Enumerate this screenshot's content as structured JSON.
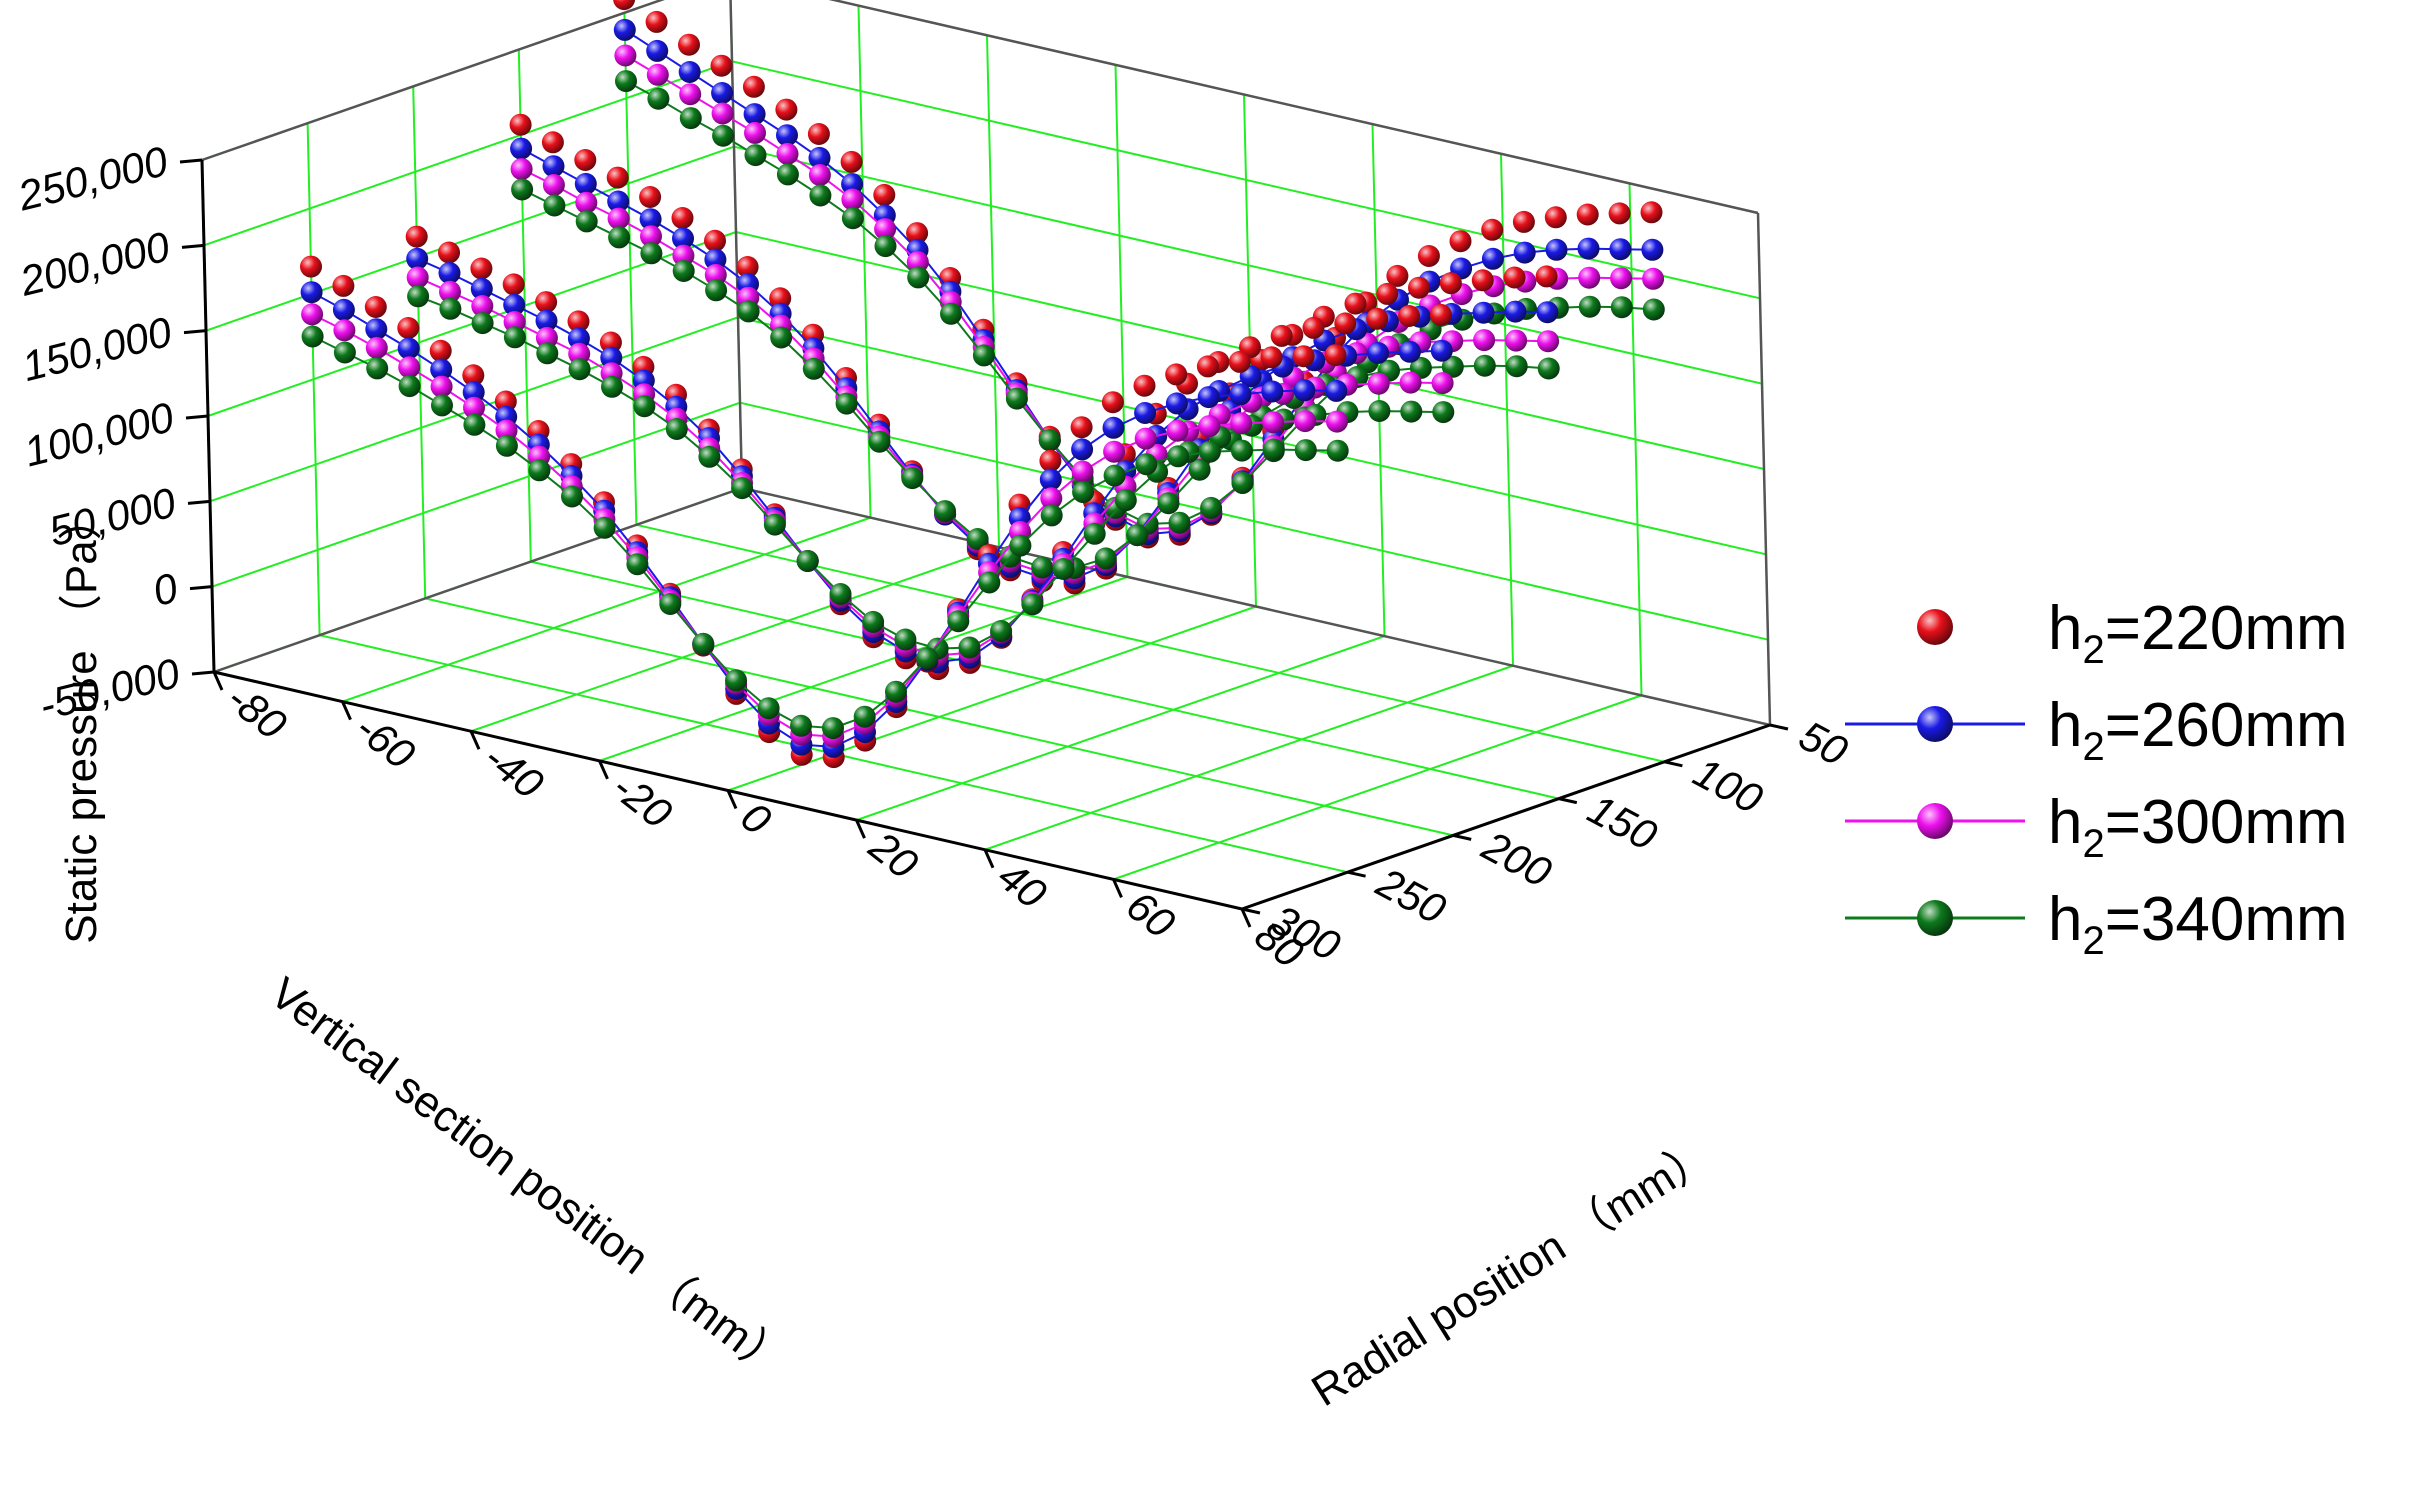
{
  "chart_data": {
    "type": "scatter3d",
    "z_axis": {
      "label": "Static pressure （Pa）",
      "range": [
        -50000,
        250000
      ],
      "ticks": [
        "-50,000",
        "0",
        "50,000",
        "100,000",
        "150,000",
        "200,000",
        "250,000"
      ]
    },
    "y_axis": {
      "label": "Vertical section position （mm）",
      "range": [
        50,
        300
      ],
      "ticks": [
        "50",
        "100",
        "150",
        "200",
        "250",
        "300"
      ]
    },
    "x_axis": {
      "label": "Radial position （mm）",
      "range": [
        -80,
        80
      ],
      "ticks": [
        "-80",
        "-60",
        "-40",
        "-20",
        "0",
        "20",
        "40",
        "60",
        "80"
      ]
    },
    "grid": true,
    "legend": "right",
    "sections_mm": [
      100,
      150,
      200,
      250
    ],
    "radial_mm": [
      -80,
      -75,
      -70,
      -65,
      -60,
      -55,
      -50,
      -45,
      -40,
      -35,
      -30,
      -25,
      -20,
      -15,
      -10,
      -5,
      0,
      5,
      10,
      15,
      20,
      25,
      30,
      35,
      40,
      45,
      50,
      55,
      60,
      65,
      70,
      75,
      80
    ],
    "series": [
      {
        "name": "h2=220mm",
        "label_main": "h",
        "label_sub": "2",
        "label_rest": "=220mm",
        "color": "#e8101a",
        "line": false,
        "profiles": [
          [
            258000,
            249000,
            240000,
            232000,
            224000,
            215000,
            205000,
            193000,
            178000,
            160000,
            138000,
            112000,
            85000,
            58000,
            34000,
            18000,
            12000,
            18000,
            34000,
            60000,
            92000,
            125000,
            155000,
            180000,
            200000,
            216000,
            229000,
            240000,
            249000,
            256000,
            262000,
            267000,
            272000
          ],
          [
            206000,
            200000,
            194000,
            188000,
            181000,
            173000,
            164000,
            153000,
            139000,
            122000,
            101000,
            78000,
            55000,
            34000,
            18000,
            10000,
            8000,
            11000,
            24000,
            48000,
            80000,
            114000,
            144000,
            168000,
            187000,
            202000,
            214000,
            224000,
            232000,
            239000,
            245000,
            251000,
            256000
          ],
          [
            162000,
            157000,
            152000,
            147000,
            141000,
            134000,
            126000,
            116000,
            104000,
            88000,
            69000,
            47000,
            24000,
            3000,
            -12000,
            -20000,
            -22000,
            -14000,
            5000,
            32000,
            64000,
            98000,
            130000,
            158000,
            180000,
            197000,
            210000,
            221000,
            230000,
            237000,
            244000,
            250000,
            255000
          ],
          [
            166000,
            159000,
            151000,
            143000,
            134000,
            124000,
            113000,
            100000,
            85000,
            67000,
            46000,
            22000,
            -4000,
            -28000,
            -46000,
            -55000,
            -52000,
            -38000,
            -14000,
            17000,
            52000,
            88000,
            122000,
            152000,
            176000,
            195000,
            209000,
            220000,
            229000,
            236000,
            243000,
            248000,
            253000
          ]
        ]
      },
      {
        "name": "h2=260mm",
        "label_main": "h",
        "label_sub": "2",
        "label_rest": "=260mm",
        "color": "#1a1ae6",
        "line": true,
        "profiles": [
          [
            240000,
            232000,
            224000,
            216000,
            208000,
            200000,
            191000,
            180000,
            166000,
            150000,
            130000,
            106000,
            81000,
            56000,
            34000,
            20000,
            14000,
            20000,
            35000,
            58000,
            87000,
            117000,
            145000,
            168000,
            186000,
            201000,
            213000,
            223000,
            231000,
            237000,
            242000,
            246000,
            250000
          ],
          [
            192000,
            186000,
            180000,
            174000,
            168000,
            161000,
            153000,
            143000,
            130000,
            114000,
            95000,
            74000,
            53000,
            34000,
            20000,
            12000,
            10000,
            14000,
            26000,
            48000,
            77000,
            107000,
            134000,
            156000,
            174000,
            188000,
            199000,
            208000,
            215000,
            221000,
            226000,
            231000,
            235000
          ],
          [
            149000,
            145000,
            140000,
            135000,
            130000,
            124000,
            117000,
            108000,
            97000,
            83000,
            65000,
            45000,
            24000,
            5000,
            -9000,
            -16000,
            -18000,
            -11000,
            6000,
            31000,
            60000,
            91000,
            120000,
            145000,
            165000,
            180000,
            193000,
            203000,
            211000,
            218000,
            224000,
            229000,
            234000
          ],
          [
            151000,
            145000,
            138000,
            131000,
            123000,
            114000,
            104000,
            92000,
            78000,
            62000,
            42000,
            20000,
            -3000,
            -25000,
            -41000,
            -49000,
            -46000,
            -33000,
            -11000,
            18000,
            50000,
            83000,
            114000,
            141000,
            163000,
            180000,
            193000,
            203000,
            211000,
            217000,
            223000,
            228000,
            232000
          ]
        ]
      },
      {
        "name": "h2=300mm",
        "label_main": "h",
        "label_sub": "2",
        "label_rest": "=300mm",
        "color": "#ee10ee",
        "line": true,
        "profiles": [
          [
            225000,
            218000,
            211000,
            204000,
            197000,
            189000,
            181000,
            171000,
            158000,
            143000,
            124000,
            102000,
            79000,
            56000,
            36000,
            22000,
            17000,
            22000,
            36000,
            57000,
            83000,
            110000,
            135000,
            156000,
            173000,
            187000,
            198000,
            207000,
            214000,
            220000,
            225000,
            229000,
            233000
          ],
          [
            180000,
            175000,
            169000,
            164000,
            158000,
            151000,
            144000,
            135000,
            123000,
            108000,
            90000,
            71000,
            52000,
            35000,
            22000,
            15000,
            13000,
            17000,
            28000,
            48000,
            74000,
            101000,
            126000,
            146000,
            162000,
            175000,
            185000,
            193000,
            200000,
            205000,
            210000,
            214000,
            218000
          ],
          [
            138000,
            134000,
            130000,
            125000,
            120000,
            115000,
            108000,
            100000,
            90000,
            77000,
            61000,
            43000,
            24000,
            7000,
            -6000,
            -13000,
            -14000,
            -8000,
            8000,
            30000,
            57000,
            85000,
            111000,
            134000,
            152000,
            166000,
            178000,
            187000,
            195000,
            201000,
            206000,
            211000,
            215000
          ],
          [
            138000,
            133000,
            127000,
            120000,
            113000,
            105000,
            96000,
            85000,
            72000,
            57000,
            39000,
            18000,
            -3000,
            -22000,
            -36000,
            -43000,
            -40000,
            -28000,
            -8000,
            19000,
            48000,
            78000,
            106000,
            130000,
            150000,
            166000,
            178000,
            187000,
            194000,
            200000,
            205000,
            210000,
            214000
          ]
        ]
      },
      {
        "name": "h2=340mm",
        "label_main": "h",
        "label_sub": "2",
        "label_rest": "=340mm",
        "color": "#0d7a1c",
        "line": true,
        "profiles": [
          [
            210000,
            204000,
            197000,
            191000,
            184000,
            177000,
            169000,
            160000,
            148000,
            134000,
            117000,
            97000,
            76000,
            56000,
            38000,
            25000,
            20000,
            25000,
            38000,
            57000,
            80000,
            104000,
            126000,
            145000,
            160000,
            173000,
            183000,
            191000,
            198000,
            203000,
            208000,
            212000,
            215000
          ],
          [
            168000,
            163000,
            158000,
            153000,
            148000,
            142000,
            135000,
            127000,
            116000,
            102000,
            86000,
            68000,
            51000,
            36000,
            24000,
            18000,
            16000,
            20000,
            30000,
            48000,
            71000,
            95000,
            117000,
            135000,
            150000,
            162000,
            171000,
            179000,
            185000,
            190000,
            195000,
            199000,
            202000
          ],
          [
            127000,
            124000,
            120000,
            116000,
            111000,
            106000,
            100000,
            93000,
            84000,
            72000,
            58000,
            41000,
            24000,
            9000,
            -3000,
            -9000,
            -10000,
            -5000,
            9000,
            29000,
            54000,
            79000,
            103000,
            124000,
            140000,
            153000,
            164000,
            172000,
            179000,
            185000,
            190000,
            194000,
            198000
          ],
          [
            125000,
            120000,
            115000,
            109000,
            102000,
            95000,
            87000,
            77000,
            66000,
            52000,
            35000,
            16000,
            -3000,
            -20000,
            -32000,
            -38000,
            -35000,
            -24000,
            -5000,
            19000,
            45000,
            72000,
            98000,
            120000,
            138000,
            152000,
            163000,
            172000,
            179000,
            184000,
            189000,
            193000,
            197000
          ]
        ]
      }
    ]
  }
}
